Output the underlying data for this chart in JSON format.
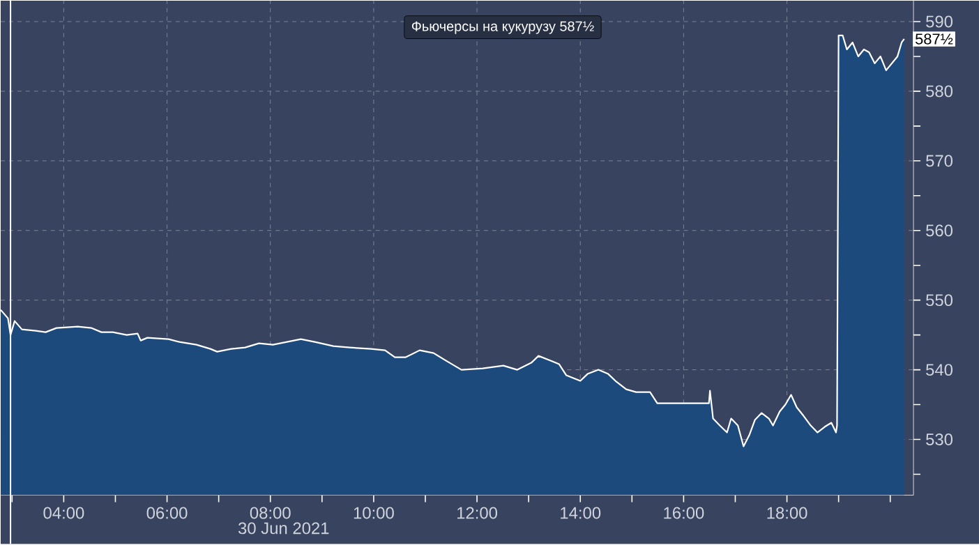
{
  "chart_data": {
    "type": "area",
    "xlabel": "30 Jun 2021",
    "x": [
      2.78,
      2.92,
      2.97,
      3.05,
      3.19,
      3.46,
      3.65,
      3.86,
      4.27,
      4.54,
      4.73,
      4.95,
      5.22,
      5.43,
      5.49,
      5.62,
      6.03,
      6.24,
      6.57,
      6.84,
      6.97,
      7.24,
      7.51,
      7.78,
      8.05,
      8.32,
      8.59,
      8.86,
      9.22,
      9.54,
      9.95,
      10.22,
      10.41,
      10.62,
      10.89,
      11.16,
      11.38,
      11.7,
      12.11,
      12.51,
      12.78,
      13.05,
      13.19,
      13.46,
      13.59,
      13.73,
      14.0,
      14.14,
      14.35,
      14.54,
      14.68,
      14.89,
      15.08,
      15.35,
      15.49,
      15.7,
      15.76,
      16.49,
      16.51,
      16.57,
      16.7,
      16.84,
      16.92,
      17.05,
      17.16,
      17.27,
      17.38,
      17.51,
      17.65,
      17.73,
      17.86,
      17.97,
      18.08,
      18.19,
      18.32,
      18.46,
      18.59,
      18.73,
      18.86,
      18.95,
      18.97,
      19.0,
      19.08,
      19.16,
      19.27,
      19.38,
      19.49,
      19.59,
      19.7,
      19.81,
      19.92,
      20.03,
      20.14,
      20.22,
      20.27
    ],
    "series": [
      {
        "name": "Фьючерсы на кукурузу 587½",
        "color": "#ffffff",
        "values": [
          548.6,
          547.4,
          545,
          547,
          545.8,
          545.6,
          545.4,
          546,
          546.2,
          546,
          545.4,
          545.4,
          545,
          545.2,
          544.2,
          544.6,
          544.4,
          544,
          543.6,
          543,
          542.6,
          543,
          543.2,
          543.8,
          543.6,
          544,
          544.4,
          544,
          543.4,
          543.2,
          543,
          542.8,
          541.8,
          541.8,
          542.8,
          542.4,
          541.4,
          540,
          540.2,
          540.6,
          540,
          541,
          542,
          541.2,
          540.8,
          539.2,
          538.4,
          539.4,
          540,
          539.4,
          538.4,
          537.2,
          536.8,
          536.8,
          535.2,
          535.2,
          535.2,
          535.2,
          537,
          533,
          532,
          531,
          533,
          532,
          529,
          530.6,
          532.8,
          533.8,
          533,
          532,
          534,
          535,
          536.4,
          534.6,
          533.4,
          532,
          531,
          531.8,
          532.4,
          531,
          532,
          588,
          588,
          586,
          587,
          585,
          586,
          585.6,
          584,
          585,
          583,
          584,
          585,
          587,
          587.5
        ]
      }
    ],
    "xlim": [
      2.78,
      20.45
    ],
    "ylim": [
      522,
      593
    ],
    "xticks": [
      {
        "value": 3,
        "label": null
      },
      {
        "value": 4,
        "label": "04:00"
      },
      {
        "value": 5,
        "label": null
      },
      {
        "value": 6,
        "label": "06:00"
      },
      {
        "value": 7,
        "label": null
      },
      {
        "value": 8,
        "label": "08:00"
      },
      {
        "value": 9,
        "label": null
      },
      {
        "value": 10,
        "label": "10:00"
      },
      {
        "value": 11,
        "label": null
      },
      {
        "value": 12,
        "label": "12:00"
      },
      {
        "value": 13,
        "label": null
      },
      {
        "value": 14,
        "label": "14:00"
      },
      {
        "value": 15,
        "label": null
      },
      {
        "value": 16,
        "label": "16:00"
      },
      {
        "value": 17,
        "label": null
      },
      {
        "value": 18,
        "label": "18:00"
      },
      {
        "value": 19,
        "label": null
      },
      {
        "value": 20,
        "label": null
      }
    ],
    "yticks": [
      {
        "value": 525,
        "label": null
      },
      530,
      {
        "value": 535,
        "label": null
      },
      540,
      {
        "value": 545,
        "label": null
      },
      550,
      {
        "value": 555,
        "label": null
      },
      560,
      {
        "value": 565,
        "label": null
      },
      570,
      {
        "value": 575,
        "label": null
      },
      580,
      {
        "value": 585,
        "label": null
      },
      590
    ],
    "grid": true,
    "legend": "top",
    "marker": "none",
    "line_style": "solid",
    "ref_lines": [
      {
        "axis": "x",
        "value": 2.97,
        "color": "#ffffff"
      }
    ],
    "annotations": [
      {
        "text": "587½",
        "x": 20.27,
        "y": 587.5
      }
    ]
  }
}
